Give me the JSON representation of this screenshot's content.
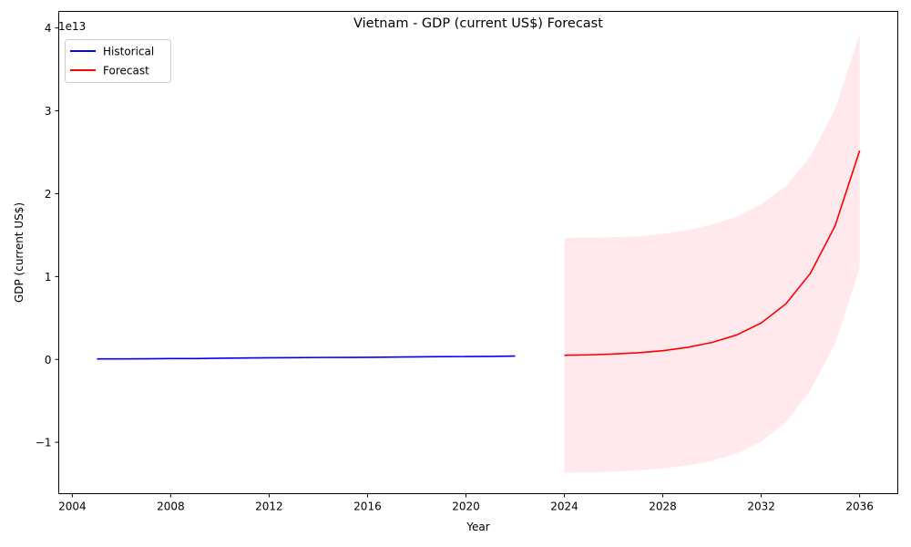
{
  "chart_data": {
    "type": "line",
    "title": "Vietnam - GDP (current US$) Forecast",
    "xlabel": "Year",
    "ylabel": "GDP (current US$)",
    "y_scale_label": "1e13",
    "y_scale": 10000000000000.0,
    "xlim": [
      2003.45,
      2037.55
    ],
    "ylim": [
      -1.62,
      4.2
    ],
    "x_ticks": [
      2004,
      2008,
      2012,
      2016,
      2020,
      2024,
      2028,
      2032,
      2036
    ],
    "y_ticks": [
      -1,
      0,
      1,
      2,
      3,
      4
    ],
    "y_tick_labels": [
      "−1",
      "0",
      "1",
      "2",
      "3",
      "4"
    ],
    "grid": false,
    "legend_position": "top-left",
    "series": [
      {
        "name": "Historical",
        "color": "#0000ff",
        "x": [
          2005,
          2006,
          2007,
          2008,
          2009,
          2010,
          2011,
          2012,
          2013,
          2014,
          2015,
          2016,
          2017,
          2018,
          2019,
          2020,
          2021,
          2022
        ],
        "values": [
          0.0058,
          0.0066,
          0.0077,
          0.0099,
          0.0106,
          0.0147,
          0.0172,
          0.0196,
          0.0213,
          0.0233,
          0.0239,
          0.0257,
          0.0281,
          0.031,
          0.0334,
          0.0346,
          0.0366,
          0.0409
        ]
      },
      {
        "name": "Forecast",
        "color": "#ff0000",
        "x": [
          2024,
          2025,
          2026,
          2027,
          2028,
          2029,
          2030,
          2031,
          2032,
          2033,
          2034,
          2035,
          2036
        ],
        "values": [
          0.05,
          0.055,
          0.065,
          0.08,
          0.105,
          0.145,
          0.205,
          0.295,
          0.44,
          0.67,
          1.04,
          1.61,
          2.52
        ]
      }
    ],
    "confidence_band": {
      "color": "#ffc0cb",
      "x": [
        2024,
        2025,
        2026,
        2027,
        2028,
        2029,
        2030,
        2031,
        2032,
        2033,
        2034,
        2035,
        2036
      ],
      "upper": [
        1.465,
        1.47,
        1.475,
        1.485,
        1.515,
        1.56,
        1.625,
        1.72,
        1.875,
        2.09,
        2.45,
        3.02,
        3.93
      ],
      "lower": [
        -1.37,
        -1.365,
        -1.355,
        -1.34,
        -1.315,
        -1.28,
        -1.225,
        -1.135,
        -0.99,
        -0.76,
        -0.37,
        0.19,
        1.1
      ]
    }
  }
}
